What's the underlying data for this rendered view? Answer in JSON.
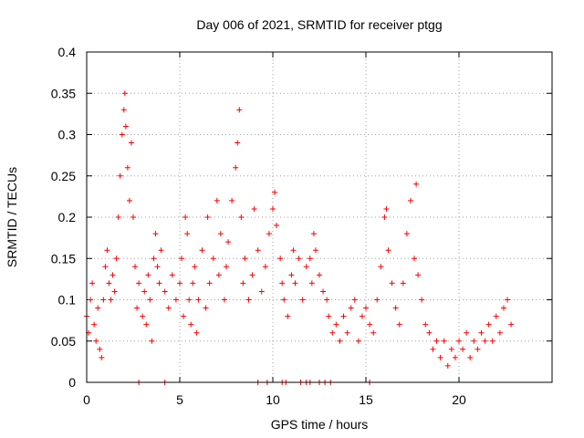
{
  "chart_data": {
    "type": "scatter",
    "title": "Day 006 of 2021, SRMTID for receiver ptgg",
    "xlabel": "GPS time / hours",
    "ylabel": "SRMTID / TECUs",
    "xlim": [
      0,
      25
    ],
    "ylim": [
      0,
      0.4
    ],
    "xticks": [
      0,
      5,
      10,
      15,
      20
    ],
    "xtick_labels": [
      "0",
      "5",
      "10",
      "15",
      "20"
    ],
    "yticks": [
      0,
      0.05,
      0.1,
      0.15,
      0.2,
      0.25,
      0.3,
      0.35,
      0.4
    ],
    "ytick_labels": [
      "0",
      "0.05",
      "0.1",
      "0.15",
      "0.2",
      "0.25",
      "0.3",
      "0.35",
      "0.4"
    ],
    "grid": true,
    "marker": "+",
    "color": "#ff0000",
    "series": [
      {
        "name": "SRMTID",
        "points": [
          [
            0.0,
            0.08
          ],
          [
            0.1,
            0.06
          ],
          [
            0.2,
            0.1
          ],
          [
            0.3,
            0.12
          ],
          [
            0.4,
            0.07
          ],
          [
            0.5,
            0.05
          ],
          [
            0.6,
            0.09
          ],
          [
            0.7,
            0.04
          ],
          [
            0.8,
            0.03
          ],
          [
            0.9,
            0.1
          ],
          [
            1.0,
            0.14
          ],
          [
            1.1,
            0.16
          ],
          [
            1.2,
            0.12
          ],
          [
            1.3,
            0.1
          ],
          [
            1.4,
            0.13
          ],
          [
            1.5,
            0.11
          ],
          [
            1.6,
            0.15
          ],
          [
            1.7,
            0.2
          ],
          [
            1.8,
            0.25
          ],
          [
            1.9,
            0.3
          ],
          [
            2.0,
            0.33
          ],
          [
            2.05,
            0.35
          ],
          [
            2.1,
            0.31
          ],
          [
            2.2,
            0.26
          ],
          [
            2.3,
            0.22
          ],
          [
            2.4,
            0.29
          ],
          [
            2.5,
            0.2
          ],
          [
            2.6,
            0.14
          ],
          [
            2.7,
            0.09
          ],
          [
            2.8,
            0.12
          ],
          [
            3.0,
            0.08
          ],
          [
            3.1,
            0.11
          ],
          [
            3.2,
            0.07
          ],
          [
            3.3,
            0.13
          ],
          [
            3.4,
            0.1
          ],
          [
            3.5,
            0.05
          ],
          [
            3.6,
            0.15
          ],
          [
            3.7,
            0.18
          ],
          [
            3.8,
            0.14
          ],
          [
            3.9,
            0.12
          ],
          [
            4.0,
            0.16
          ],
          [
            4.2,
            0.11
          ],
          [
            4.4,
            0.09
          ],
          [
            4.6,
            0.13
          ],
          [
            4.8,
            0.1
          ],
          [
            5.0,
            0.12
          ],
          [
            5.1,
            0.15
          ],
          [
            5.2,
            0.08
          ],
          [
            5.3,
            0.2
          ],
          [
            5.4,
            0.18
          ],
          [
            5.5,
            0.1
          ],
          [
            5.6,
            0.07
          ],
          [
            5.7,
            0.12
          ],
          [
            5.8,
            0.14
          ],
          [
            5.9,
            0.06
          ],
          [
            6.0,
            0.1
          ],
          [
            6.2,
            0.16
          ],
          [
            6.4,
            0.09
          ],
          [
            6.5,
            0.2
          ],
          [
            6.6,
            0.12
          ],
          [
            6.8,
            0.15
          ],
          [
            7.0,
            0.22
          ],
          [
            7.1,
            0.13
          ],
          [
            7.2,
            0.18
          ],
          [
            7.4,
            0.1
          ],
          [
            7.5,
            0.14
          ],
          [
            7.6,
            0.17
          ],
          [
            7.8,
            0.22
          ],
          [
            8.0,
            0.26
          ],
          [
            8.1,
            0.29
          ],
          [
            8.2,
            0.33
          ],
          [
            8.3,
            0.2
          ],
          [
            8.4,
            0.12
          ],
          [
            8.5,
            0.15
          ],
          [
            8.7,
            0.1
          ],
          [
            8.9,
            0.13
          ],
          [
            9.0,
            0.21
          ],
          [
            9.2,
            0.16
          ],
          [
            9.4,
            0.11
          ],
          [
            9.6,
            0.14
          ],
          [
            9.8,
            0.18
          ],
          [
            10.0,
            0.21
          ],
          [
            10.1,
            0.23
          ],
          [
            10.2,
            0.19
          ],
          [
            10.4,
            0.15
          ],
          [
            10.5,
            0.12
          ],
          [
            10.6,
            0.1
          ],
          [
            10.8,
            0.08
          ],
          [
            11.0,
            0.13
          ],
          [
            11.1,
            0.16
          ],
          [
            11.2,
            0.12
          ],
          [
            11.4,
            0.15
          ],
          [
            11.6,
            0.1
          ],
          [
            11.8,
            0.14
          ],
          [
            12.0,
            0.15
          ],
          [
            12.1,
            0.12
          ],
          [
            12.2,
            0.18
          ],
          [
            12.3,
            0.16
          ],
          [
            12.5,
            0.13
          ],
          [
            12.7,
            0.11
          ],
          [
            12.9,
            0.1
          ],
          [
            13.0,
            0.08
          ],
          [
            13.2,
            0.06
          ],
          [
            13.4,
            0.07
          ],
          [
            13.6,
            0.05
          ],
          [
            13.8,
            0.08
          ],
          [
            14.0,
            0.06
          ],
          [
            14.2,
            0.09
          ],
          [
            14.4,
            0.1
          ],
          [
            14.6,
            0.05
          ],
          [
            14.8,
            0.08
          ],
          [
            15.0,
            0.09
          ],
          [
            15.2,
            0.07
          ],
          [
            15.4,
            0.06
          ],
          [
            15.6,
            0.1
          ],
          [
            15.8,
            0.14
          ],
          [
            16.0,
            0.2
          ],
          [
            16.1,
            0.21
          ],
          [
            16.2,
            0.16
          ],
          [
            16.4,
            0.12
          ],
          [
            16.6,
            0.09
          ],
          [
            16.8,
            0.07
          ],
          [
            17.0,
            0.12
          ],
          [
            17.2,
            0.18
          ],
          [
            17.4,
            0.22
          ],
          [
            17.6,
            0.15
          ],
          [
            17.7,
            0.24
          ],
          [
            17.8,
            0.13
          ],
          [
            18.0,
            0.1
          ],
          [
            18.2,
            0.07
          ],
          [
            18.4,
            0.06
          ],
          [
            18.6,
            0.04
          ],
          [
            18.8,
            0.05
          ],
          [
            19.0,
            0.03
          ],
          [
            19.2,
            0.05
          ],
          [
            19.4,
            0.02
          ],
          [
            19.6,
            0.04
          ],
          [
            19.8,
            0.03
          ],
          [
            20.0,
            0.05
          ],
          [
            20.2,
            0.04
          ],
          [
            20.4,
            0.06
          ],
          [
            20.6,
            0.03
          ],
          [
            20.8,
            0.05
          ],
          [
            21.0,
            0.04
          ],
          [
            21.2,
            0.06
          ],
          [
            21.4,
            0.05
          ],
          [
            21.6,
            0.07
          ],
          [
            21.8,
            0.05
          ],
          [
            22.0,
            0.08
          ],
          [
            22.2,
            0.06
          ],
          [
            22.4,
            0.09
          ],
          [
            22.6,
            0.1
          ],
          [
            22.8,
            0.07
          ]
        ]
      }
    ],
    "zero_markers_x": [
      2.8,
      4.2,
      9.2,
      9.7,
      10.5,
      10.7,
      11.5,
      11.8,
      12.0,
      12.5,
      12.8,
      13.1,
      15.2
    ]
  }
}
